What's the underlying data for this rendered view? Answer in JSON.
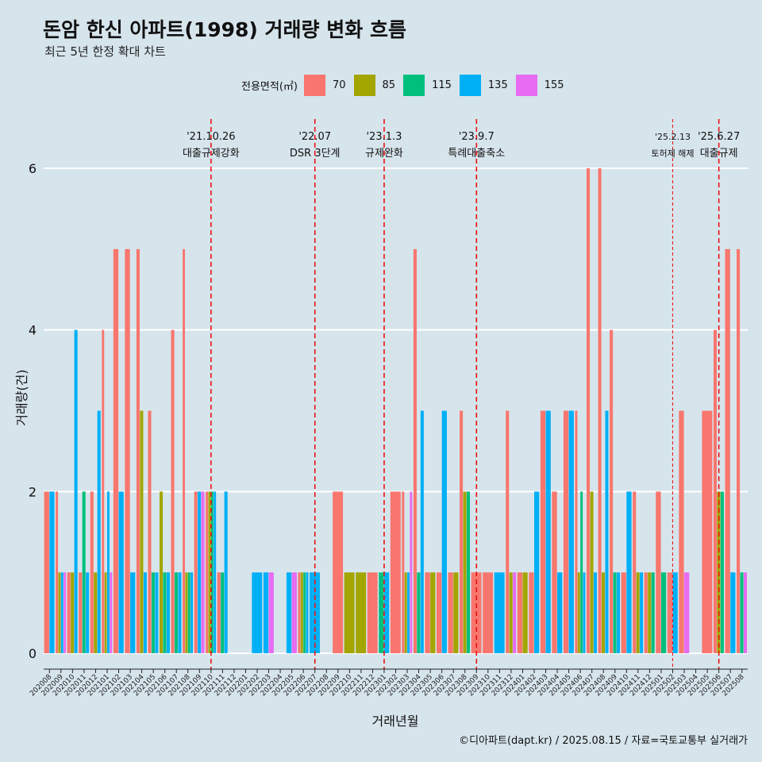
{
  "chart_data": {
    "type": "bar",
    "title": "돈암 한신 아파트(1998) 거래량 변화 흐름",
    "subtitle": "최근 5년 한정 확대 차트",
    "xlabel": "거래년월",
    "ylabel": "거래량(건)",
    "ylim": [
      0,
      6
    ],
    "yticks": [
      0,
      2,
      4,
      6
    ],
    "grid": "horizontal",
    "legend": {
      "title": "전용면적(㎡)",
      "position": "top"
    },
    "series_order": [
      "70",
      "85",
      "115",
      "135",
      "155"
    ],
    "series_colors": {
      "70": "#F8766D",
      "85": "#A3A500",
      "115": "#00BF7D",
      "135": "#00B0F6",
      "155": "#E76BF3"
    },
    "categories": [
      "202008",
      "202009",
      "202010",
      "202011",
      "202012",
      "202101",
      "202102",
      "202103",
      "202104",
      "202105",
      "202106",
      "202107",
      "202108",
      "202109",
      "202110",
      "202111",
      "202112",
      "202201",
      "202202",
      "202203",
      "202204",
      "202205",
      "202206",
      "202207",
      "202208",
      "202209",
      "202210",
      "202211",
      "202212",
      "202301",
      "202302",
      "202303",
      "202304",
      "202305",
      "202306",
      "202307",
      "202308",
      "202309",
      "202310",
      "202311",
      "202312",
      "202401",
      "202402",
      "202403",
      "202404",
      "202405",
      "202406",
      "202407",
      "202408",
      "202409",
      "202410",
      "202411",
      "202412",
      "202501",
      "202502",
      "202503",
      "202504",
      "202505",
      "202506",
      "202507",
      "202508"
    ],
    "data": [
      {
        "month": "202008",
        "values": {
          "70": 2,
          "135": 2
        }
      },
      {
        "month": "202009",
        "values": {
          "70": 2,
          "85": 1,
          "135": 1,
          "155": 1
        }
      },
      {
        "month": "202010",
        "values": {
          "70": 1,
          "85": 1,
          "135": 4
        }
      },
      {
        "month": "202011",
        "values": {
          "70": 1,
          "115": 2,
          "135": 1
        }
      },
      {
        "month": "202012",
        "values": {
          "70": 2,
          "85": 1,
          "135": 3
        }
      },
      {
        "month": "202101",
        "values": {
          "70": 4,
          "85": 1,
          "135": 2,
          "155": 1
        }
      },
      {
        "month": "202102",
        "values": {
          "70": 5,
          "135": 2
        }
      },
      {
        "month": "202103",
        "values": {
          "70": 5,
          "135": 1
        }
      },
      {
        "month": "202104",
        "values": {
          "70": 5,
          "85": 3,
          "135": 1
        }
      },
      {
        "month": "202105",
        "values": {
          "70": 3,
          "115": 1,
          "135": 1
        }
      },
      {
        "month": "202106",
        "values": {
          "85": 2,
          "115": 1,
          "135": 1
        }
      },
      {
        "month": "202107",
        "values": {
          "70": 4,
          "115": 1,
          "135": 1
        }
      },
      {
        "month": "202108",
        "values": {
          "70": 5,
          "85": 1,
          "115": 1,
          "135": 1
        }
      },
      {
        "month": "202109",
        "values": {
          "70": 2,
          "135": 2,
          "155": 2
        }
      },
      {
        "month": "202110",
        "values": {
          "70": 2,
          "85": 2,
          "115": 2,
          "135": 2
        }
      },
      {
        "month": "202111",
        "values": {
          "70": 1,
          "115": 1,
          "135": 2
        }
      },
      {
        "month": "202112",
        "values": {}
      },
      {
        "month": "202201",
        "values": {}
      },
      {
        "month": "202202",
        "values": {
          "135": 1
        }
      },
      {
        "month": "202203",
        "values": {
          "135": 1,
          "155": 1
        }
      },
      {
        "month": "202204",
        "values": {}
      },
      {
        "month": "202205",
        "values": {
          "135": 1,
          "155": 1
        }
      },
      {
        "month": "202206",
        "values": {
          "70": 1,
          "85": 1,
          "115": 1,
          "135": 1
        }
      },
      {
        "month": "202207",
        "values": {
          "135": 1
        }
      },
      {
        "month": "202208",
        "values": {}
      },
      {
        "month": "202209",
        "values": {
          "70": 2
        }
      },
      {
        "month": "202210",
        "values": {
          "85": 1
        }
      },
      {
        "month": "202211",
        "values": {
          "85": 1
        }
      },
      {
        "month": "202212",
        "values": {
          "70": 1
        }
      },
      {
        "month": "202301",
        "values": {
          "115": 1,
          "135": 1
        }
      },
      {
        "month": "202302",
        "values": {
          "70": 2
        }
      },
      {
        "month": "202303",
        "values": {
          "70": 2,
          "85": 1,
          "135": 1,
          "155": 2
        }
      },
      {
        "month": "202304",
        "values": {
          "70": 5,
          "115": 1,
          "135": 3
        }
      },
      {
        "month": "202305",
        "values": {
          "70": 1,
          "85": 1
        }
      },
      {
        "month": "202306",
        "values": {
          "70": 1,
          "135": 3
        }
      },
      {
        "month": "202307",
        "values": {
          "70": 1,
          "85": 1
        }
      },
      {
        "month": "202308",
        "values": {
          "70": 3,
          "85": 2,
          "115": 2
        }
      },
      {
        "month": "202309",
        "values": {
          "70": 1
        }
      },
      {
        "month": "202310",
        "values": {
          "70": 1
        }
      },
      {
        "month": "202311",
        "values": {
          "135": 1
        }
      },
      {
        "month": "202312",
        "values": {
          "70": 3,
          "85": 1,
          "155": 1
        }
      },
      {
        "month": "202401",
        "values": {
          "70": 1,
          "85": 1
        }
      },
      {
        "month": "202402",
        "values": {
          "70": 1,
          "135": 2
        }
      },
      {
        "month": "202403",
        "values": {
          "70": 3,
          "135": 3
        }
      },
      {
        "month": "202404",
        "values": {
          "70": 2,
          "135": 1
        }
      },
      {
        "month": "202405",
        "values": {
          "70": 3,
          "135": 3
        }
      },
      {
        "month": "202406",
        "values": {
          "70": 3,
          "85": 1,
          "115": 2,
          "135": 1
        }
      },
      {
        "month": "202407",
        "values": {
          "70": 6,
          "85": 2,
          "135": 1
        }
      },
      {
        "month": "202408",
        "values": {
          "70": 6,
          "85": 1,
          "135": 3
        }
      },
      {
        "month": "202409",
        "values": {
          "70": 4,
          "115": 1,
          "135": 1
        }
      },
      {
        "month": "202410",
        "values": {
          "70": 1,
          "135": 2
        }
      },
      {
        "month": "202411",
        "values": {
          "70": 2,
          "85": 1,
          "135": 1
        }
      },
      {
        "month": "202412",
        "values": {
          "70": 1,
          "85": 1,
          "115": 1
        }
      },
      {
        "month": "202501",
        "values": {
          "70": 2,
          "115": 1
        }
      },
      {
        "month": "202502",
        "values": {
          "70": 1,
          "135": 1
        }
      },
      {
        "month": "202503",
        "values": {
          "70": 3,
          "155": 1
        }
      },
      {
        "month": "202504",
        "values": {}
      },
      {
        "month": "202505",
        "values": {
          "70": 3
        }
      },
      {
        "month": "202506",
        "values": {
          "70": 4,
          "85": 2,
          "115": 2
        }
      },
      {
        "month": "202507",
        "values": {
          "70": 5,
          "135": 1
        }
      },
      {
        "month": "202508",
        "values": {
          "70": 5,
          "115": 1,
          "155": 1
        }
      }
    ],
    "annotations": [
      {
        "month": "202110",
        "date": "'21.10.26",
        "label": "대출규제강화"
      },
      {
        "month": "202207",
        "date": "'22.07",
        "label": "DSR 3단계"
      },
      {
        "month": "202301",
        "date": "'23.1.3",
        "label": "규제완화"
      },
      {
        "month": "202309",
        "date": "'23.9.7",
        "label": "특례대출축소"
      },
      {
        "month": "202502",
        "date": "'25.2.13",
        "label": "토허제 해제"
      },
      {
        "month": "202506",
        "date": "'25.6.27",
        "label": "대출규제"
      }
    ]
  },
  "caption": "©디아파트(dapt.kr) / 2025.08.15 / 자료=국토교통부 실거래가"
}
